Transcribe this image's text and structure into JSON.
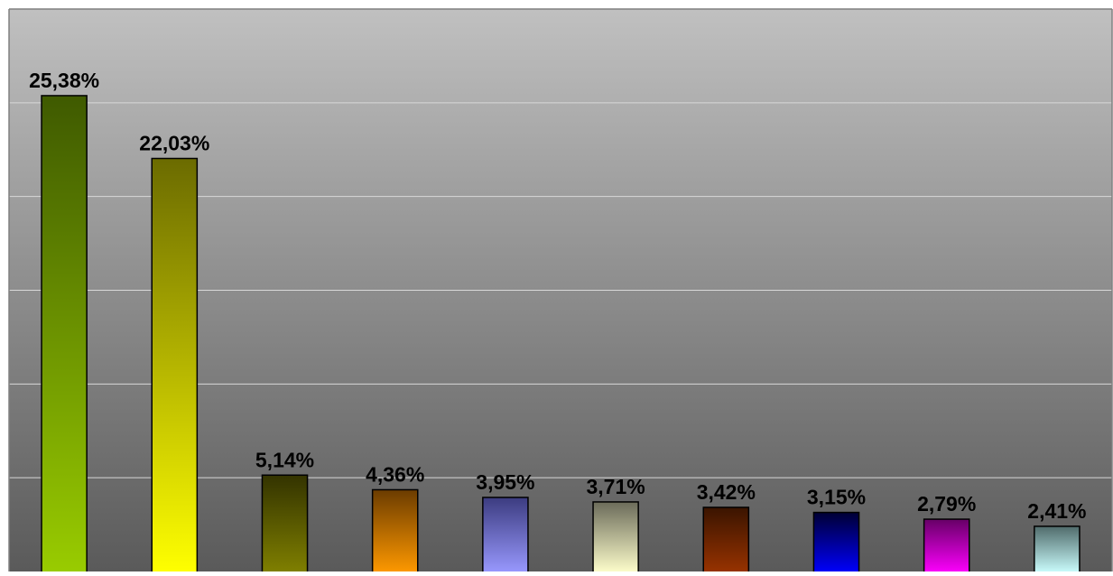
{
  "chart_data": {
    "type": "bar",
    "categories": [
      "",
      "",
      "",
      "",
      "",
      "",
      "",
      "",
      "",
      ""
    ],
    "values": [
      25.38,
      22.03,
      5.14,
      4.36,
      3.95,
      3.71,
      3.42,
      3.15,
      2.79,
      2.41
    ],
    "data_labels": [
      "25,38%",
      "22,03%",
      "5,14%",
      "4,36%",
      "3,95%",
      "3,71%",
      "3,42%",
      "3,15%",
      "2,79%",
      "2,41%"
    ],
    "colors": [
      [
        "#3f5a00",
        "#99cc00"
      ],
      [
        "#6b6b00",
        "#ffff00"
      ],
      [
        "#333300",
        "#808000"
      ],
      [
        "#6b3c00",
        "#ff9900"
      ],
      [
        "#3c3c80",
        "#9999ff"
      ],
      [
        "#6b6b5a",
        "#ffffcc"
      ],
      [
        "#3a1400",
        "#993300"
      ],
      [
        "#000033",
        "#0000ff"
      ],
      [
        "#660066",
        "#ff00ff"
      ],
      [
        "#506b6b",
        "#ccffff"
      ]
    ],
    "ylim": [
      0,
      30
    ],
    "grid": true,
    "title": "",
    "xlabel": "",
    "ylabel": "",
    "legend": "none",
    "plot_background": [
      "#c0c0c0",
      "#5a5a5a"
    ]
  }
}
